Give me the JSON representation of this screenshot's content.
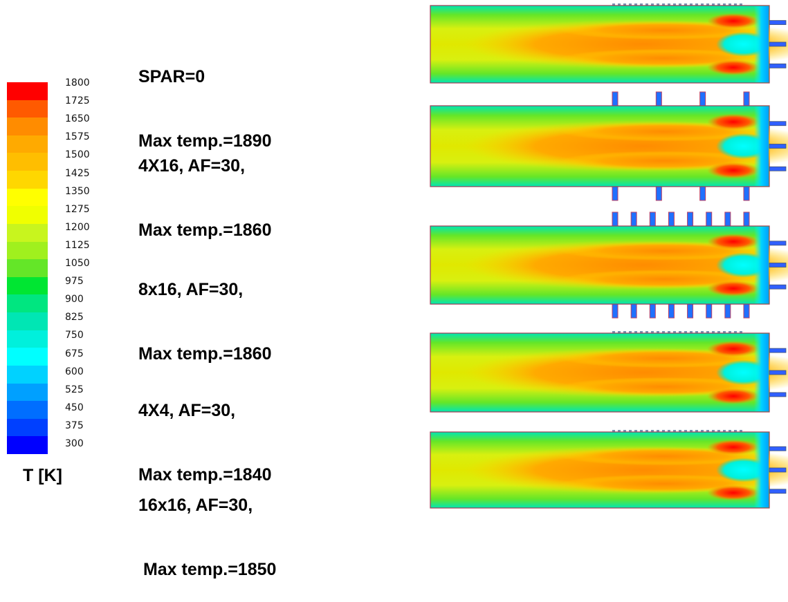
{
  "colorbar": {
    "unit_label": "T [K]",
    "ticks": [
      "1800",
      "1725",
      "1650",
      "1575",
      "1500",
      "1425",
      "1350",
      "1275",
      "1200",
      "1125",
      "1050",
      "975",
      "900",
      "825",
      "750",
      "675",
      "600",
      "525",
      "450",
      "375",
      "300"
    ],
    "colors": [
      "#ff0000",
      "#ff5a00",
      "#ff8c00",
      "#ffaa00",
      "#ffbe00",
      "#ffd700",
      "#ffff00",
      "#f0ff00",
      "#c8f51e",
      "#a0f01e",
      "#64e628",
      "#00e632",
      "#00e680",
      "#00e6b4",
      "#00f0dc",
      "#00ffff",
      "#00d2ff",
      "#00a0ff",
      "#006eff",
      "#0040ff",
      "#0000ff"
    ]
  },
  "cases": [
    {
      "line1": "SPAR=0",
      "line2": "Max temp.=1890"
    },
    {
      "line1": "4X16, AF=30,",
      "line2": "Max temp.=1860"
    },
    {
      "line1": "8x16, AF=30,",
      "line2": "Max temp.=1860"
    },
    {
      "line1": "4X4, AF=30,",
      "line2": "Max temp.=1840"
    },
    {
      "line1": "16x16, AF=30,",
      "line2": " Max temp.=1850"
    }
  ]
}
